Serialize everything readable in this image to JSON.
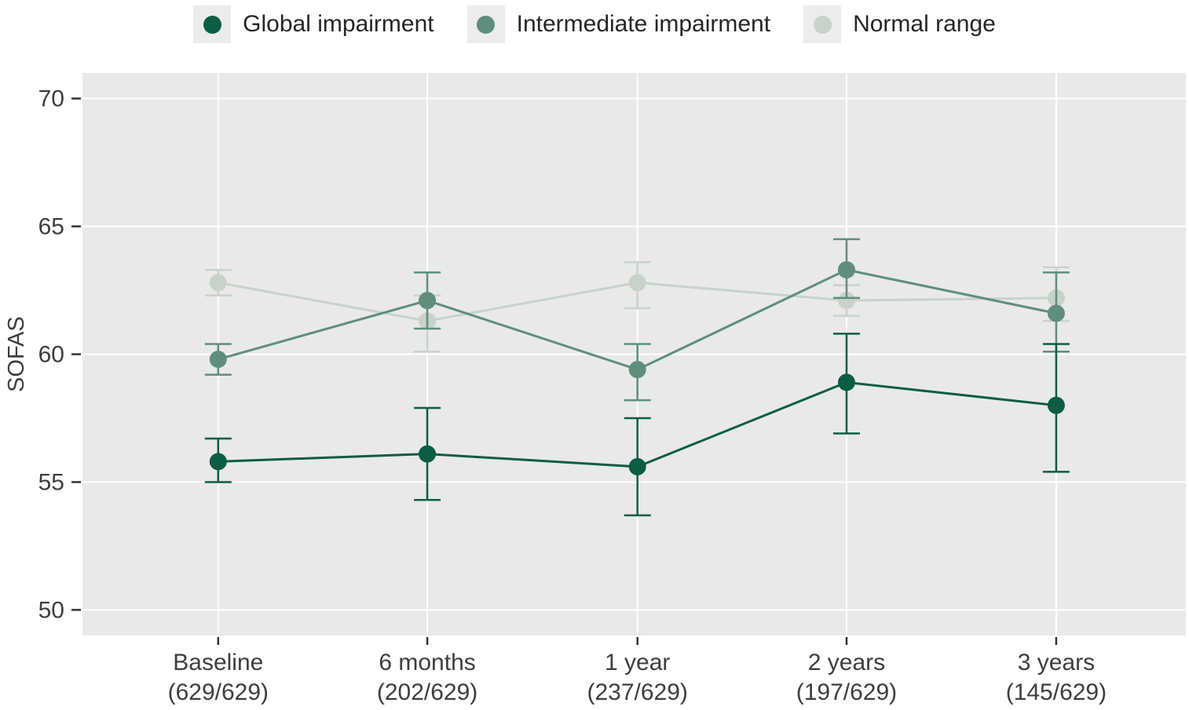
{
  "figure": {
    "background": "#ffffff",
    "panel_background": "#e9e9e9",
    "gridline_color": "#ffffff",
    "axis_text_color": "#3d3d3d",
    "tick_mark_color": "#333333",
    "legend_key_background": "#ececec"
  },
  "chart_data": {
    "type": "line",
    "title": "",
    "xlabel": "",
    "ylabel": "SOFAS",
    "ylim": [
      49,
      71
    ],
    "yticks": [
      50,
      55,
      60,
      65,
      70
    ],
    "grid": true,
    "legend_position": "top",
    "error_bars": true,
    "categories": [
      "Baseline",
      "6 months",
      "1 year",
      "2 years",
      "3 years"
    ],
    "category_sublabels": [
      "(629/629)",
      "(202/629)",
      "(237/629)",
      "(197/629)",
      "(145/629)"
    ],
    "series": [
      {
        "name": "Global impairment",
        "color": "#0b5d45",
        "values": [
          55.8,
          56.1,
          55.6,
          58.9,
          58.0
        ],
        "ci_low": [
          55.0,
          54.3,
          53.7,
          56.9,
          55.4
        ],
        "ci_high": [
          56.7,
          57.9,
          57.5,
          60.8,
          60.4
        ]
      },
      {
        "name": "Intermediate impairment",
        "color": "#5f8e7d",
        "values": [
          59.8,
          62.1,
          59.4,
          63.3,
          61.6
        ],
        "ci_low": [
          59.2,
          61.0,
          58.2,
          62.2,
          60.1
        ],
        "ci_high": [
          60.4,
          63.2,
          60.4,
          64.5,
          63.2
        ]
      },
      {
        "name": "Normal range",
        "color": "#c8d2ca",
        "values": [
          62.8,
          61.3,
          62.8,
          62.1,
          62.2
        ],
        "ci_low": [
          62.3,
          60.1,
          61.8,
          61.5,
          61.3
        ],
        "ci_high": [
          63.3,
          62.3,
          63.6,
          62.7,
          63.4
        ]
      }
    ]
  }
}
